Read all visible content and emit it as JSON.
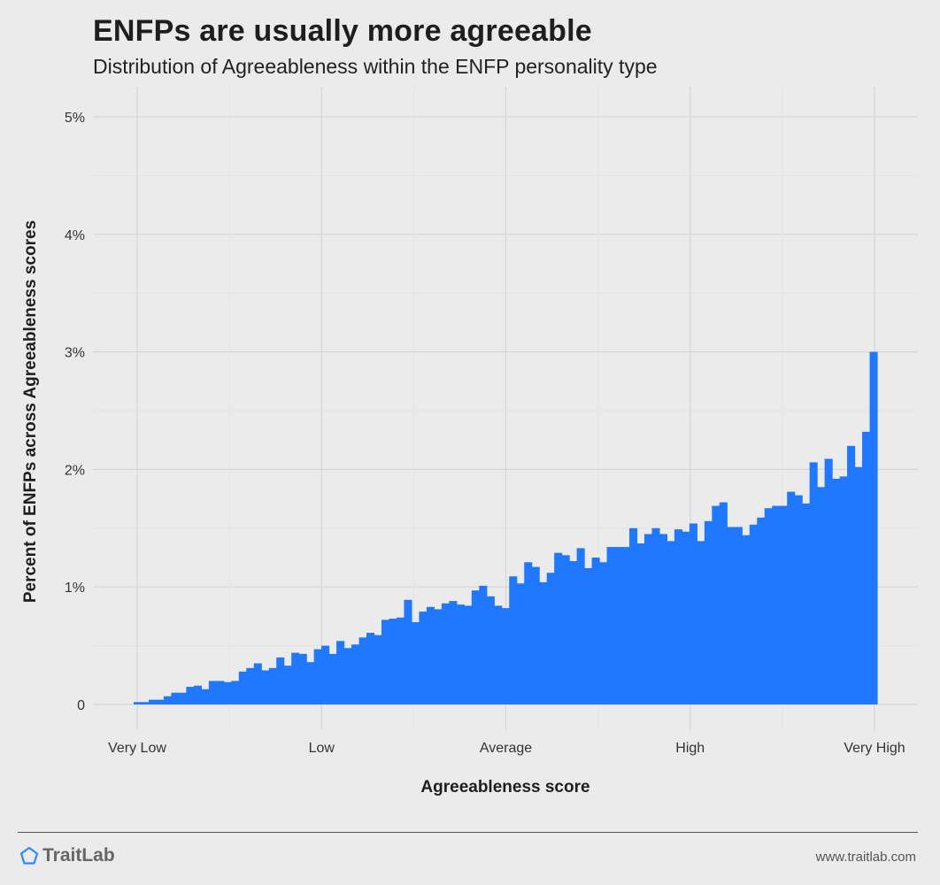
{
  "header": {
    "title": "ENFPs are usually more agreeable",
    "subtitle": "Distribution of Agreeableness within the ENFP personality type"
  },
  "footer": {
    "brand": "TraitLab",
    "brand_icon": "pentagon-icon",
    "url": "www.traitlab.com"
  },
  "colors": {
    "bar": "#1f78ff",
    "background": "#ebebeb",
    "grid_major": "#d6d6d6",
    "grid_minor": "#e3e3e3",
    "brand_icon": "#2a8cff"
  },
  "chart_data": {
    "type": "bar",
    "title": "ENFPs are usually more agreeable",
    "subtitle": "Distribution of Agreeableness within the ENFP personality type",
    "xlabel": "Agreeableness score",
    "ylabel": "Percent of ENFPs across Agreeableness scores",
    "x_tick_labels": [
      "Very Low",
      "Low",
      "Average",
      "High",
      "Very High"
    ],
    "y_tick_labels": [
      "0",
      "1%",
      "2%",
      "3%",
      "4%",
      "5%"
    ],
    "ylim": [
      0,
      5
    ],
    "grid": true,
    "legend": "none",
    "unit": "percent",
    "values": [
      0.02,
      0.02,
      0.04,
      0.04,
      0.07,
      0.1,
      0.1,
      0.15,
      0.16,
      0.13,
      0.2,
      0.2,
      0.19,
      0.2,
      0.28,
      0.31,
      0.35,
      0.29,
      0.31,
      0.4,
      0.33,
      0.44,
      0.43,
      0.36,
      0.47,
      0.5,
      0.43,
      0.54,
      0.48,
      0.51,
      0.57,
      0.61,
      0.59,
      0.72,
      0.73,
      0.74,
      0.89,
      0.7,
      0.79,
      0.83,
      0.81,
      0.86,
      0.88,
      0.85,
      0.84,
      0.97,
      1.01,
      0.92,
      0.84,
      0.82,
      1.09,
      1.03,
      1.21,
      1.17,
      1.04,
      1.12,
      1.29,
      1.27,
      1.22,
      1.33,
      1.16,
      1.25,
      1.21,
      1.34,
      1.34,
      1.34,
      1.5,
      1.37,
      1.45,
      1.5,
      1.45,
      1.39,
      1.49,
      1.47,
      1.54,
      1.39,
      1.56,
      1.69,
      1.72,
      1.51,
      1.51,
      1.44,
      1.53,
      1.59,
      1.67,
      1.69,
      1.69,
      1.81,
      1.78,
      1.71,
      2.06,
      1.85,
      2.09,
      1.92,
      1.94,
      2.2,
      2.02,
      2.32,
      3.0
    ]
  }
}
